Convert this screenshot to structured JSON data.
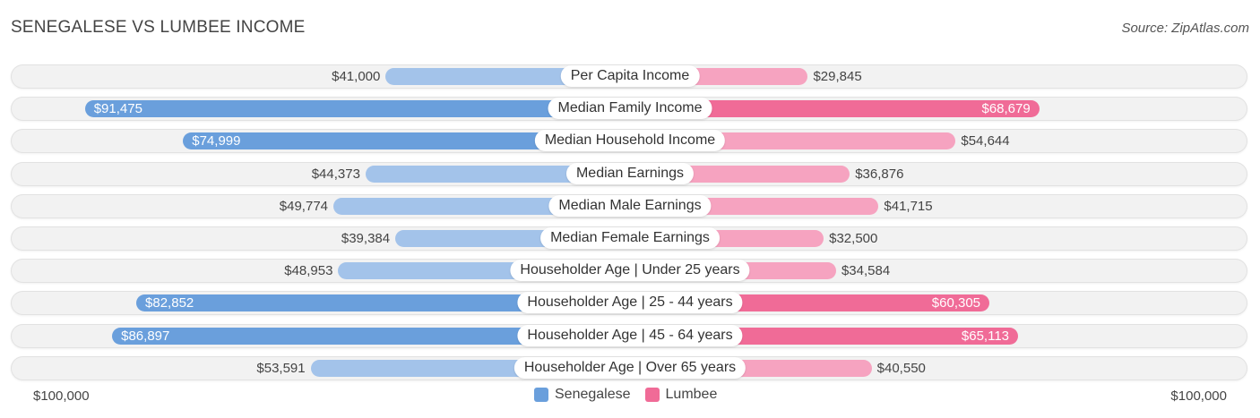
{
  "title": "SENEGALESE VS LUMBEE INCOME",
  "source": "Source: ZipAtlas.com",
  "axis": {
    "left_label": "$100,000",
    "right_label": "$100,000"
  },
  "legend": [
    {
      "name": "Senegalese",
      "color": "#6a9fdc"
    },
    {
      "name": "Lumbee",
      "color": "#f06b97"
    }
  ],
  "chart_data": {
    "type": "bar",
    "orientation": "horizontal-diverging",
    "max": 100000,
    "categories": [
      "Per Capita Income",
      "Median Family Income",
      "Median Household Income",
      "Median Earnings",
      "Median Male Earnings",
      "Median Female Earnings",
      "Householder Age | Under 25 years",
      "Householder Age | 25 - 44 years",
      "Householder Age | 45 - 64 years",
      "Householder Age | Over 65 years"
    ],
    "series": [
      {
        "name": "Senegalese",
        "side": "left",
        "color_strong": "#6a9fdc",
        "color_light": "#a3c3ea",
        "values": [
          41000,
          91475,
          74999,
          44373,
          49774,
          39384,
          48953,
          82852,
          86897,
          53591
        ],
        "labels": [
          "$41,000",
          "$91,475",
          "$74,999",
          "$44,373",
          "$49,774",
          "$39,384",
          "$48,953",
          "$82,852",
          "$86,897",
          "$53,591"
        ]
      },
      {
        "name": "Lumbee",
        "side": "right",
        "color_strong": "#f06b97",
        "color_light": "#f6a3c0",
        "values": [
          29845,
          68679,
          54644,
          36876,
          41715,
          32500,
          34584,
          60305,
          65113,
          40550
        ],
        "labels": [
          "$29,845",
          "$68,679",
          "$54,644",
          "$36,876",
          "$41,715",
          "$32,500",
          "$34,584",
          "$60,305",
          "$65,113",
          "$40,550"
        ]
      }
    ]
  }
}
